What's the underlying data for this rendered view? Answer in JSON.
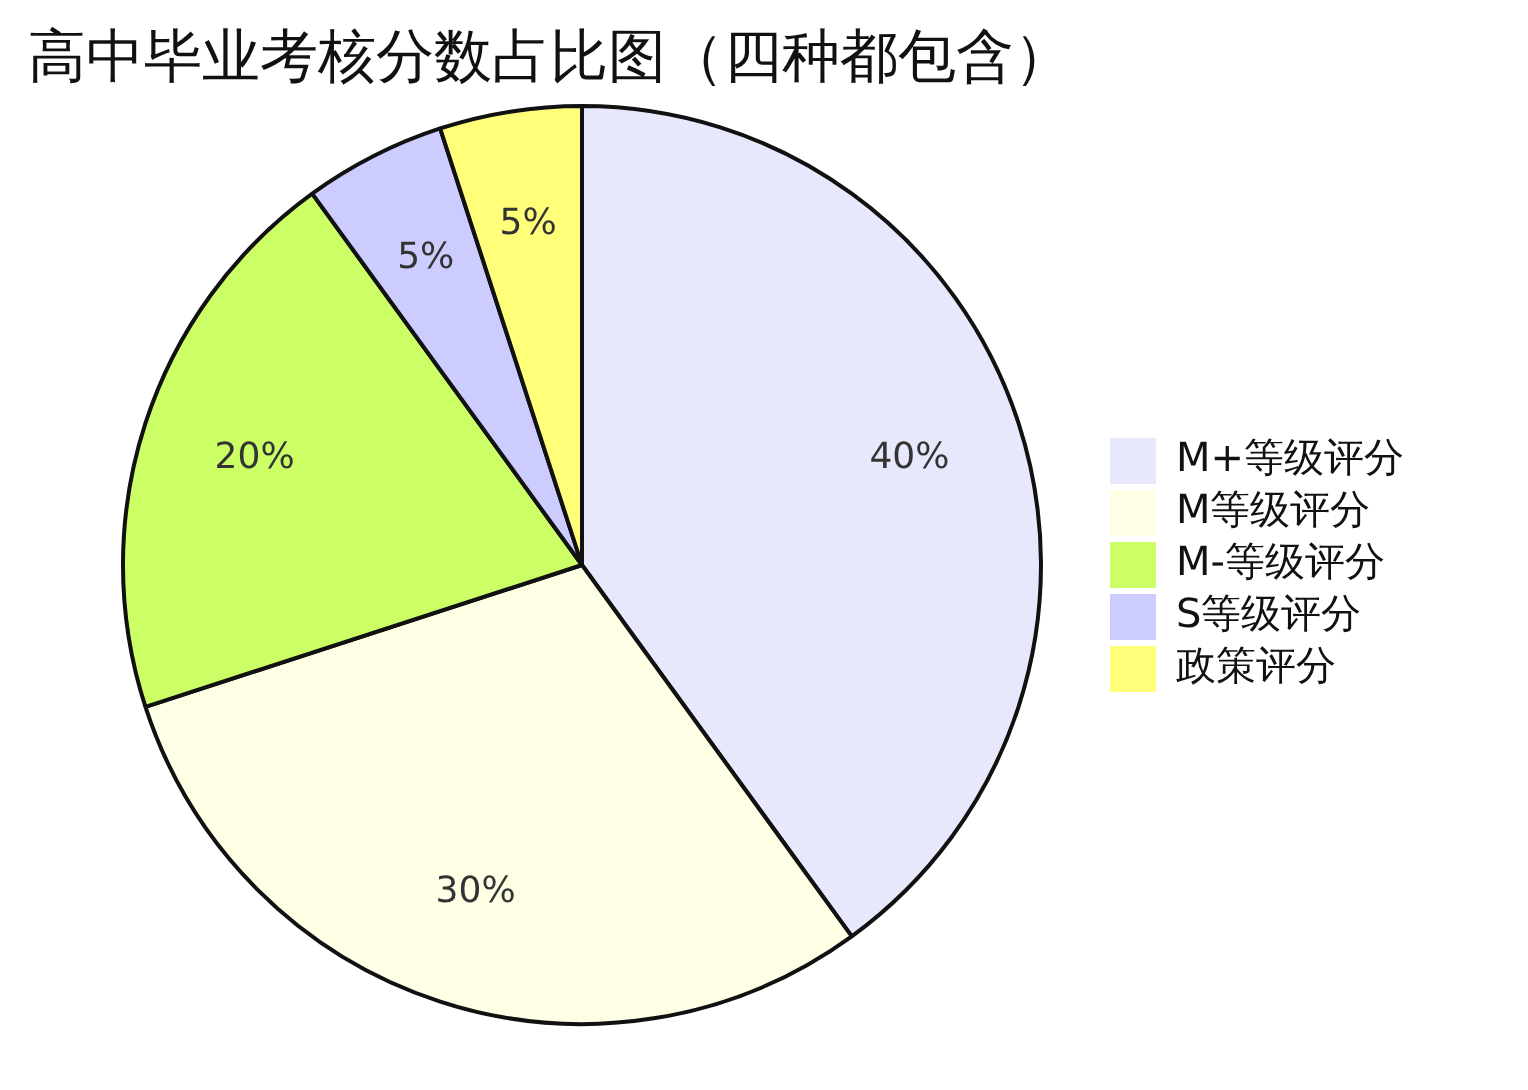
{
  "chart_data": {
    "type": "pie",
    "title": "高中毕业考核分数占比图（四种都包含）",
    "categories": [
      "M+等级评分",
      "M等级评分",
      "M-等级评分",
      "S等级评分",
      "政策评分"
    ],
    "values": [
      40,
      30,
      20,
      5,
      5
    ],
    "colors": [
      "#e8e8fc",
      "#ffffe6",
      "#ccff66",
      "#ccccff",
      "#ffff7a"
    ],
    "value_labels": [
      "40%",
      "30%",
      "20%",
      "5%",
      "5%"
    ],
    "legend": "right"
  }
}
